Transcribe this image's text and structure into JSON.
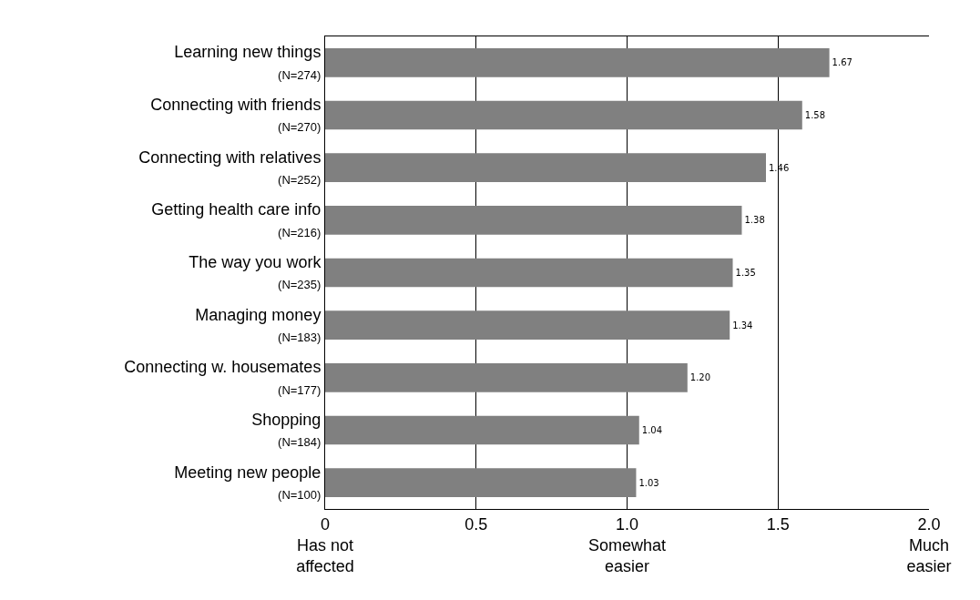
{
  "chart_data": {
    "type": "bar",
    "orientation": "horizontal",
    "categories": [
      "Learning new things\n(N=274)",
      "Connecting with friends\n(N=270)",
      "Connecting with relatives\n(N=252)",
      "Getting health care info\n(N=216)",
      "The way you work\n(N=235)",
      "Managing money\n(N=183)",
      "Connecting w. housemates\n(N=177)",
      "Shopping\n(N=184)",
      "Meeting new people\n(N=100)"
    ],
    "values": [
      1.67,
      1.58,
      1.46,
      1.38,
      1.35,
      1.34,
      1.2,
      1.04,
      1.03
    ],
    "value_labels": [
      "1.67",
      "1.58",
      "1.46",
      "1.38",
      "1.35",
      "1.34",
      "1.20",
      "1.04",
      "1.03"
    ],
    "color": "#808080",
    "xlim": [
      0,
      2
    ],
    "xticks": [
      {
        "value": 0,
        "label": "0\nHas not\naffected"
      },
      0.5,
      {
        "value": 1,
        "label": "1.0\nSomewhat\neasier"
      },
      1.5,
      {
        "value": 2,
        "label": "2.0\nMuch\neasier"
      }
    ],
    "grid": "x"
  }
}
